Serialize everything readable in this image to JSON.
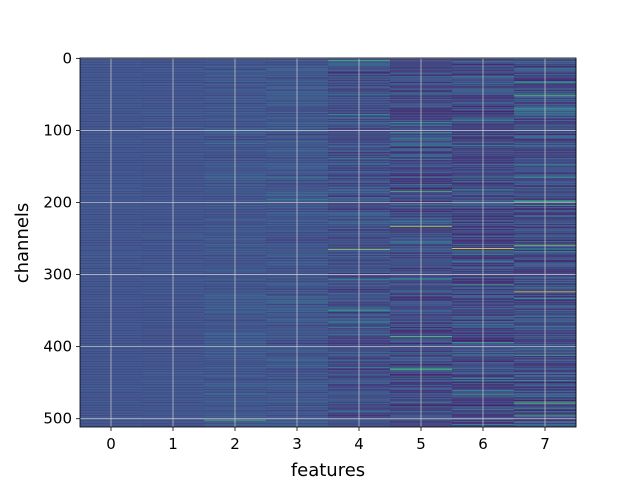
{
  "chart_data": {
    "type": "heatmap",
    "title": "",
    "xlabel": "features",
    "ylabel": "channels",
    "x_categories": [
      0,
      1,
      2,
      3,
      4,
      5,
      6,
      7
    ],
    "x_ticks": [
      "0",
      "1",
      "2",
      "3",
      "4",
      "5",
      "6",
      "7"
    ],
    "y_ticks": [
      "0",
      "100",
      "200",
      "300",
      "400",
      "500"
    ],
    "y_tick_values": [
      0,
      100,
      200,
      300,
      400,
      500
    ],
    "ylim": [
      511.5,
      -0.5
    ],
    "xlim": [
      -0.5,
      7.5
    ],
    "n_rows": 512,
    "y_axis": "inverted",
    "grid": true,
    "colormap": "viridis",
    "colormap_stops": [
      "#440154",
      "#3b528b",
      "#21918c",
      "#5ec962",
      "#fde725"
    ],
    "column_profiles": [
      {
        "feature": 0,
        "base_level": 0.24,
        "variability": 0.015
      },
      {
        "feature": 1,
        "base_level": 0.24,
        "variability": 0.025
      },
      {
        "feature": 2,
        "base_level": 0.25,
        "variability": 0.045
      },
      {
        "feature": 3,
        "base_level": 0.25,
        "variability": 0.06
      },
      {
        "feature": 4,
        "base_level": 0.23,
        "variability": 0.09
      },
      {
        "feature": 5,
        "base_level": 0.21,
        "variability": 0.11
      },
      {
        "feature": 6,
        "base_level": 0.21,
        "variability": 0.12
      },
      {
        "feature": 7,
        "base_level": 0.22,
        "variability": 0.13
      }
    ],
    "highlights": [
      {
        "feature": 2,
        "channel": 502,
        "value": 0.65
      },
      {
        "feature": 4,
        "channel": 3,
        "value": 0.6
      },
      {
        "feature": 4,
        "channel": 265,
        "value": 0.85
      },
      {
        "feature": 5,
        "channel": 233,
        "value": 0.9
      },
      {
        "feature": 5,
        "channel": 185,
        "value": 0.7
      },
      {
        "feature": 5,
        "channel": 386,
        "value": 0.7
      },
      {
        "feature": 5,
        "channel": 432,
        "value": 0.7
      },
      {
        "feature": 6,
        "channel": 264,
        "value": 1.0
      },
      {
        "feature": 6,
        "channel": 467,
        "value": 0.6
      },
      {
        "feature": 7,
        "channel": 260,
        "value": 0.8
      },
      {
        "feature": 7,
        "channel": 324,
        "value": 0.95
      },
      {
        "feature": 7,
        "channel": 477,
        "value": 0.7
      },
      {
        "feature": 7,
        "channel": 70,
        "value": 0.6
      }
    ]
  }
}
